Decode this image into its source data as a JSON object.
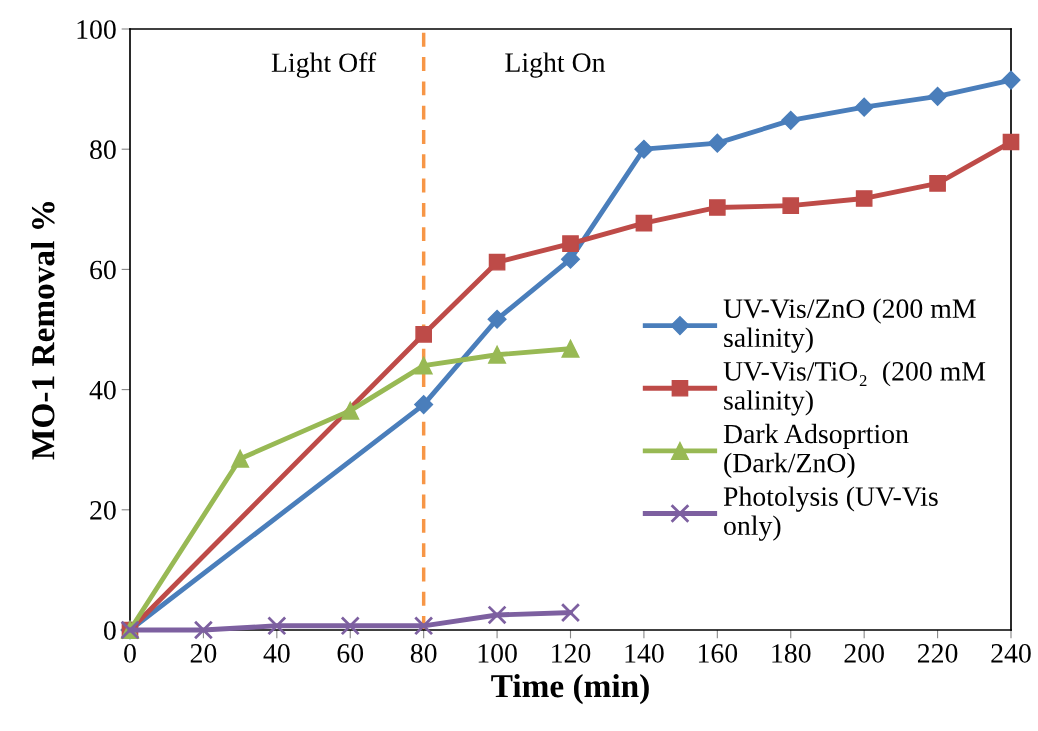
{
  "chart_data": {
    "type": "line",
    "xlabel": "Time (min)",
    "ylabel": "MO-1 Removal %",
    "xlim": [
      0,
      240
    ],
    "xticks": [
      0,
      20,
      40,
      60,
      80,
      100,
      120,
      140,
      160,
      180,
      200,
      220,
      240
    ],
    "ylim": [
      0,
      100
    ],
    "yticks": [
      0,
      20,
      40,
      60,
      80,
      100
    ],
    "grid": false,
    "legend": "right",
    "annotations": [
      "Light Off",
      "Light On"
    ],
    "ref_lines": [
      {
        "axis": "x",
        "value": 80,
        "color": "#f79646",
        "line_style": "dashed"
      }
    ],
    "series": [
      {
        "name": "UV-Vis/ZnO (200 mM\nsalinity)",
        "color": "#4a7ebb",
        "marker": "diamond",
        "x": [
          0,
          80,
          100,
          120,
          140,
          160,
          180,
          200,
          220,
          240
        ],
        "values": [
          0,
          37.5,
          51.7,
          61.7,
          80,
          81,
          84.8,
          87,
          88.8,
          91.5
        ]
      },
      {
        "name": "UV-Vis/TiO₂  (200 mM\nsalinity)",
        "color": "#be4b48",
        "marker": "square",
        "x": [
          0,
          80,
          100,
          120,
          140,
          160,
          180,
          200,
          220,
          240
        ],
        "values": [
          0,
          49.2,
          61.2,
          64.3,
          67.7,
          70.3,
          70.6,
          71.8,
          74.3,
          81.2
        ]
      },
      {
        "name": "Dark Adsoprtion\n(Dark/ZnO)",
        "color": "#98b954",
        "marker": "triangle",
        "x": [
          0,
          30,
          60,
          80,
          100,
          120
        ],
        "values": [
          0,
          28.5,
          36.5,
          44,
          45.8,
          46.8
        ]
      },
      {
        "name": "Photolysis (UV-Vis\nonly)",
        "color": "#7d60a0",
        "marker": "cross",
        "x": [
          0,
          20,
          40,
          60,
          80,
          100,
          120
        ],
        "values": [
          0,
          0,
          0.7,
          0.7,
          0.7,
          2.5,
          2.9
        ]
      }
    ]
  }
}
